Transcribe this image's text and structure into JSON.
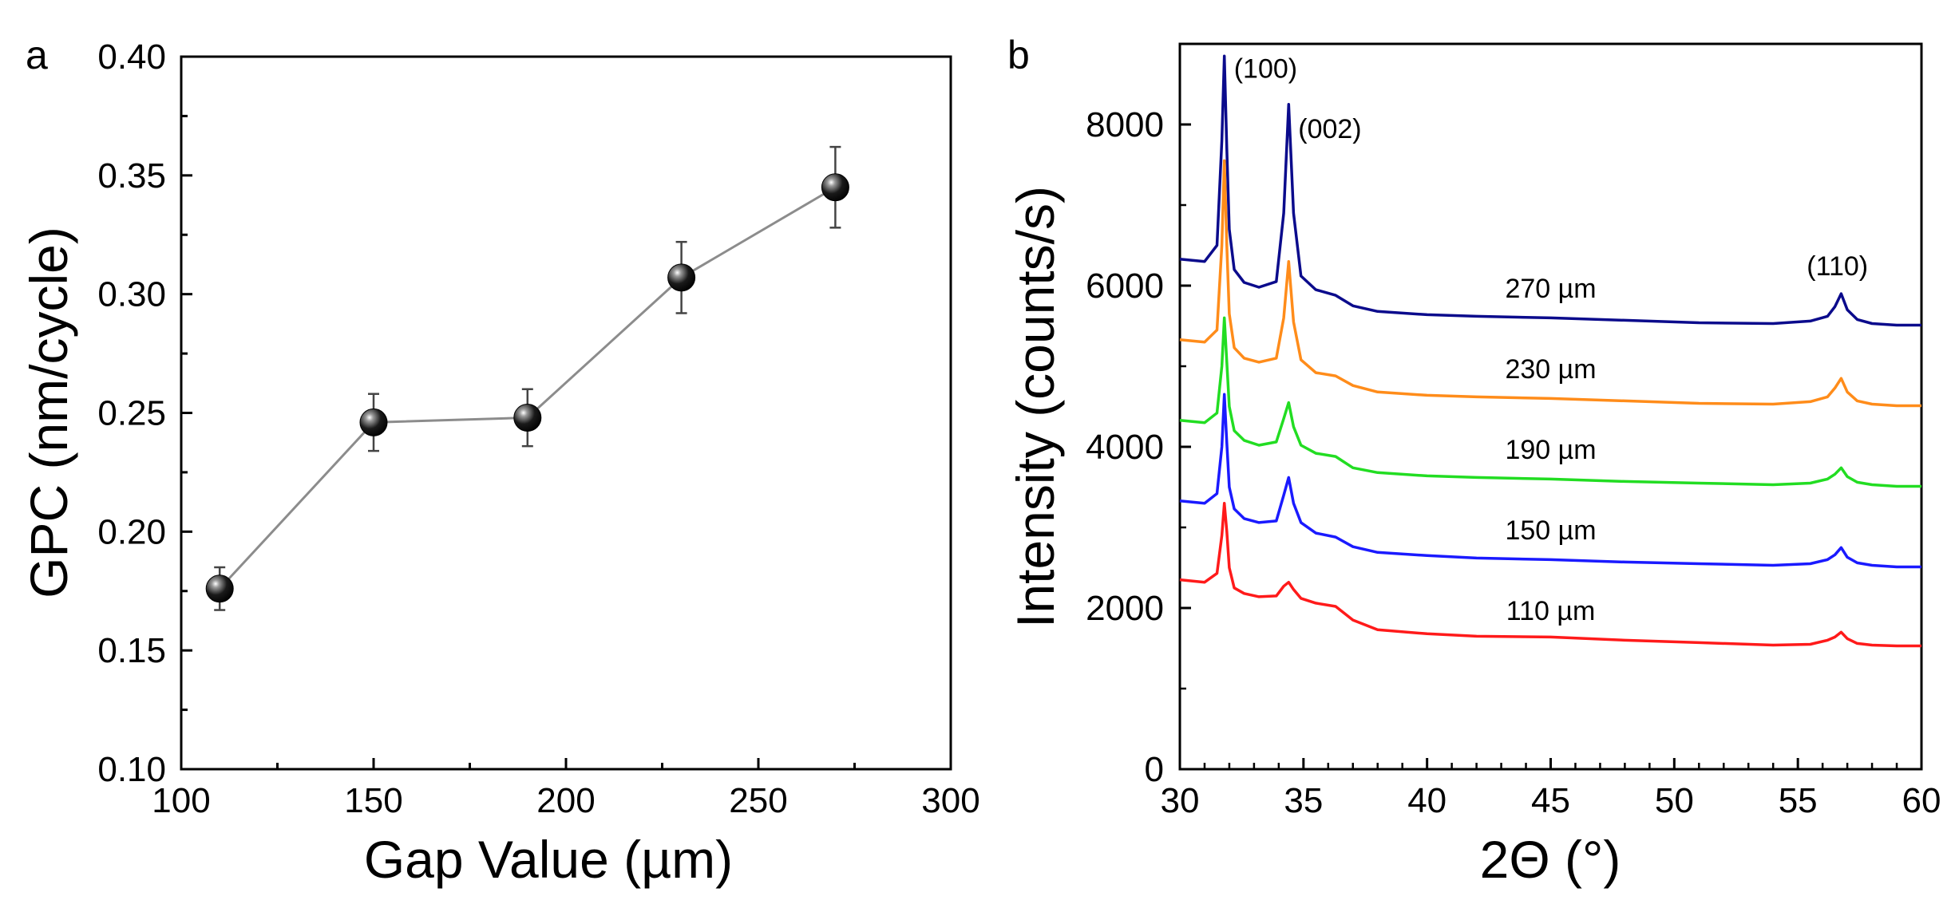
{
  "chart_data": [
    {
      "panel": "a",
      "type": "scatter",
      "title": "",
      "xlabel": "Gap Value (µm)",
      "ylabel": "GPC (nm/cycle)",
      "xlim": [
        100,
        300
      ],
      "ylim": [
        0.1,
        0.4
      ],
      "xticks": [
        100,
        150,
        200,
        250,
        300
      ],
      "yticks": [
        0.1,
        0.15,
        0.2,
        0.25,
        0.3,
        0.35,
        0.4
      ],
      "xtick_labels": [
        "100",
        "150",
        "200",
        "250",
        "300"
      ],
      "ytick_labels": [
        "0.10",
        "0.15",
        "0.20",
        "0.25",
        "0.30",
        "0.35",
        "0.40"
      ],
      "grid": false,
      "series": [
        {
          "name": "GPC",
          "x": [
            110,
            150,
            190,
            230,
            270
          ],
          "y": [
            0.176,
            0.246,
            0.248,
            0.307,
            0.345
          ],
          "yerr": [
            0.009,
            0.012,
            0.012,
            0.015,
            0.017
          ],
          "color": "#000000",
          "line_color": "#8c8c8c"
        }
      ]
    },
    {
      "panel": "b",
      "type": "line",
      "title": "",
      "xlabel": "2Θ (°)",
      "ylabel": "Intensity (counts/s)",
      "xlim": [
        30,
        60
      ],
      "ylim": [
        0,
        9000
      ],
      "xticks": [
        30,
        35,
        40,
        45,
        50,
        55,
        60
      ],
      "yticks": [
        0,
        2000,
        4000,
        6000,
        8000
      ],
      "xtick_labels": [
        "30",
        "35",
        "40",
        "45",
        "50",
        "55",
        "60"
      ],
      "ytick_labels": [
        "0",
        "2000",
        "4000",
        "6000",
        "8000"
      ],
      "grid": false,
      "peak_annotations": [
        {
          "label": "(100)",
          "x": 31.8,
          "y": 8700
        },
        {
          "label": "(002)",
          "x": 34.4,
          "y": 7950
        },
        {
          "label": "(110)",
          "x": 56.6,
          "y": 6250
        }
      ],
      "series": [
        {
          "name": "270 µm",
          "color": "#0b0b8c",
          "label_at": [
            45,
            6000
          ],
          "x": [
            30,
            31,
            31.5,
            31.7,
            31.8,
            31.9,
            32.0,
            32.2,
            32.6,
            33.2,
            33.9,
            34.2,
            34.4,
            34.6,
            34.9,
            35.5,
            36.3,
            37.0,
            38.0,
            40.0,
            42.0,
            45.0,
            48.0,
            51.0,
            54.0,
            55.5,
            56.2,
            56.5,
            56.75,
            57.0,
            57.4,
            58.0,
            59.0,
            60.0
          ],
          "y": [
            6330,
            6300,
            6500,
            7800,
            8850,
            7700,
            6700,
            6200,
            6040,
            5980,
            6050,
            6900,
            8250,
            6900,
            6120,
            5950,
            5880,
            5750,
            5680,
            5640,
            5620,
            5600,
            5570,
            5540,
            5530,
            5560,
            5620,
            5740,
            5900,
            5700,
            5580,
            5530,
            5510,
            5510
          ]
        },
        {
          "name": "230 µm",
          "color": "#ff8c1a",
          "label_at": [
            45,
            5000
          ],
          "x": [
            30,
            31,
            31.5,
            31.7,
            31.8,
            31.9,
            32.0,
            32.2,
            32.6,
            33.2,
            33.9,
            34.2,
            34.4,
            34.6,
            34.9,
            35.5,
            36.3,
            37.0,
            38.0,
            40.0,
            42.0,
            45.0,
            48.0,
            51.0,
            54.0,
            55.5,
            56.2,
            56.5,
            56.75,
            57.0,
            57.4,
            58.0,
            59.0,
            60.0
          ],
          "y": [
            5330,
            5300,
            5450,
            6500,
            7550,
            6500,
            5650,
            5230,
            5100,
            5050,
            5100,
            5600,
            6300,
            5550,
            5080,
            4920,
            4880,
            4760,
            4680,
            4640,
            4620,
            4600,
            4570,
            4540,
            4530,
            4560,
            4620,
            4730,
            4850,
            4680,
            4570,
            4530,
            4510,
            4510
          ]
        },
        {
          "name": "190 µm",
          "color": "#22dd22",
          "label_at": [
            45,
            4000
          ],
          "x": [
            30,
            31,
            31.5,
            31.7,
            31.8,
            31.9,
            32.0,
            32.2,
            32.6,
            33.2,
            33.9,
            34.2,
            34.4,
            34.6,
            34.9,
            35.5,
            36.3,
            37.0,
            38.0,
            40.0,
            42.0,
            45.0,
            48.0,
            51.0,
            54.0,
            55.5,
            56.2,
            56.5,
            56.75,
            57.0,
            57.4,
            58.0,
            59.0,
            60.0
          ],
          "y": [
            4330,
            4300,
            4420,
            5000,
            5600,
            5050,
            4500,
            4200,
            4080,
            4020,
            4060,
            4350,
            4550,
            4250,
            4020,
            3920,
            3880,
            3740,
            3680,
            3640,
            3620,
            3600,
            3570,
            3550,
            3530,
            3550,
            3600,
            3660,
            3740,
            3630,
            3560,
            3530,
            3510,
            3510
          ]
        },
        {
          "name": "150 µm",
          "color": "#1a1aff",
          "label_at": [
            45,
            3000
          ],
          "x": [
            30,
            31,
            31.5,
            31.7,
            31.8,
            31.9,
            32.0,
            32.2,
            32.6,
            33.2,
            33.9,
            34.2,
            34.4,
            34.6,
            34.9,
            35.5,
            36.3,
            37.0,
            38.0,
            40.0,
            42.0,
            45.0,
            48.0,
            51.0,
            54.0,
            55.5,
            56.2,
            56.5,
            56.75,
            57.0,
            57.4,
            58.0,
            59.0,
            60.0
          ],
          "y": [
            3330,
            3300,
            3420,
            4000,
            4650,
            4050,
            3500,
            3230,
            3110,
            3060,
            3080,
            3400,
            3620,
            3300,
            3060,
            2930,
            2880,
            2760,
            2690,
            2650,
            2620,
            2600,
            2570,
            2550,
            2530,
            2550,
            2600,
            2660,
            2750,
            2630,
            2560,
            2530,
            2510,
            2510
          ]
        },
        {
          "name": "110 µm",
          "color": "#ff1a1a",
          "label_at": [
            45,
            2000
          ],
          "x": [
            30,
            31,
            31.5,
            31.7,
            31.8,
            31.9,
            32.0,
            32.2,
            32.6,
            33.2,
            33.9,
            34.2,
            34.4,
            34.6,
            34.9,
            35.5,
            36.3,
            37.0,
            38.0,
            40.0,
            42.0,
            45.0,
            48.0,
            51.0,
            54.0,
            55.5,
            56.2,
            56.5,
            56.75,
            57.0,
            57.4,
            58.0,
            59.0,
            60.0
          ],
          "y": [
            2350,
            2320,
            2430,
            2900,
            3300,
            2950,
            2500,
            2250,
            2180,
            2140,
            2150,
            2270,
            2320,
            2230,
            2120,
            2060,
            2020,
            1850,
            1730,
            1680,
            1650,
            1640,
            1600,
            1570,
            1540,
            1550,
            1600,
            1640,
            1700,
            1620,
            1560,
            1540,
            1530,
            1530
          ]
        }
      ]
    }
  ]
}
